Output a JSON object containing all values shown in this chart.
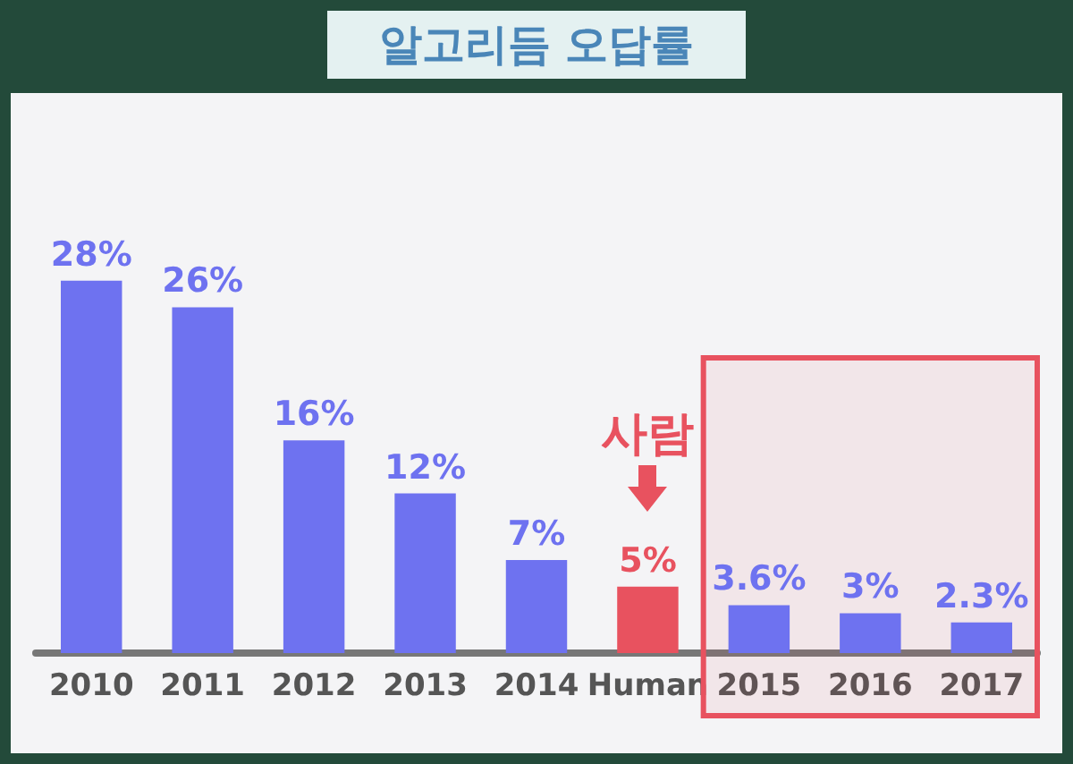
{
  "chart_data": {
    "type": "bar",
    "title": "알고리듬 오답률",
    "categories": [
      "2010",
      "2011",
      "2012",
      "2013",
      "2014",
      "Human",
      "2015",
      "2016",
      "2017"
    ],
    "values": [
      28,
      26,
      16,
      12,
      7,
      5,
      3.6,
      3,
      2.3
    ],
    "colors": [
      "#6e72f0",
      "#6e72f0",
      "#6e72f0",
      "#6e72f0",
      "#6e72f0",
      "#e8525f",
      "#6e72f0",
      "#6e72f0",
      "#6e72f0"
    ],
    "value_labels": [
      "28%",
      "26%",
      "16%",
      "12%",
      "7%",
      "5%",
      "3.6%",
      "3%",
      "2.3%"
    ],
    "annotations": [
      {
        "text": "사람",
        "x": "Human",
        "y": 5
      }
    ],
    "bands": [
      {
        "axis": "x",
        "from": "2015",
        "to": "2017",
        "color": "#e8525f"
      }
    ],
    "tick_labels": "x"
  }
}
